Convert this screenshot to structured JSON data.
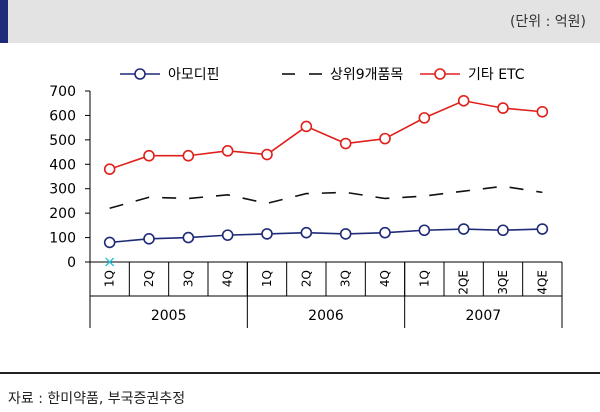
{
  "unit_label": "(단위 : 억원)",
  "source": "자료 : 한미약품, 부국증권추정",
  "chart_data": {
    "type": "line",
    "categories": [
      "1Q",
      "2Q",
      "3Q",
      "4Q",
      "1Q",
      "2Q",
      "3Q",
      "4Q",
      "1Q",
      "2QE",
      "3QE",
      "4QE"
    ],
    "year_groups": [
      {
        "label": "2005",
        "start": 0,
        "end": 4
      },
      {
        "label": "2006",
        "start": 4,
        "end": 8
      },
      {
        "label": "2007",
        "start": 8,
        "end": 12
      }
    ],
    "ylim": [
      0,
      700
    ],
    "yticks": [
      0,
      100,
      200,
      300,
      400,
      500,
      600,
      700
    ],
    "grid": false,
    "legend_position": "top",
    "series": [
      {
        "name": "아모디핀",
        "color": "#1f2a78",
        "style": "solid-marker",
        "values": [
          80,
          95,
          100,
          110,
          115,
          120,
          115,
          120,
          130,
          135,
          130,
          135
        ]
      },
      {
        "name": "상위9개품목",
        "color": "#111111",
        "style": "dashed",
        "values": [
          220,
          265,
          260,
          275,
          240,
          280,
          285,
          260,
          270,
          290,
          310,
          285
        ]
      },
      {
        "name": "기타 ETC",
        "color": "#e0201b",
        "style": "solid-marker",
        "values": [
          380,
          435,
          435,
          455,
          440,
          555,
          485,
          505,
          590,
          660,
          630,
          615
        ]
      }
    ]
  }
}
